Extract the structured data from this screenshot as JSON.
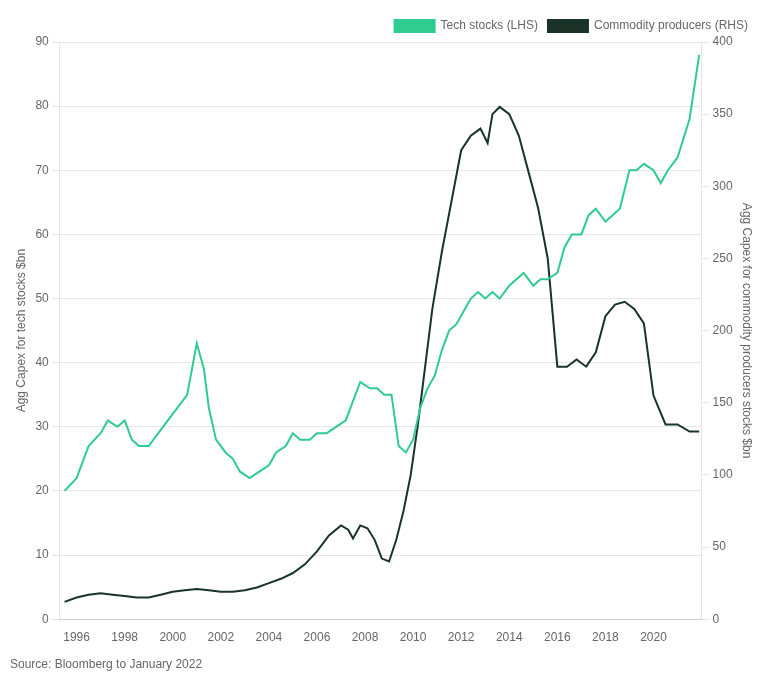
{
  "chart_data": {
    "type": "line",
    "ylabel": "Agg Capex for tech stocks $bn",
    "y2label": "Agg Capex for commodity producers stocks $bn",
    "annotations": [
      "Source: Bloomberg to January 2022"
    ],
    "xlim": [
      1995.3,
      2022.0
    ],
    "xticks": [
      1996,
      1998,
      2000,
      2002,
      2004,
      2006,
      2008,
      2010,
      2012,
      2014,
      2016,
      2018,
      2020
    ],
    "ylim": [
      0,
      90
    ],
    "yticks": [
      0,
      10,
      20,
      30,
      40,
      50,
      60,
      70,
      80,
      90
    ],
    "y2lim": [
      0,
      400
    ],
    "y2ticks": [
      0,
      50,
      100,
      150,
      200,
      250,
      300,
      350,
      400
    ],
    "grid": "y",
    "legend": "upper right",
    "series": [
      {
        "name": "Tech stocks (LHS)",
        "color": "#2ecc8e",
        "axis": "y",
        "x": [
          1995.5,
          1996.0,
          1996.5,
          1997.0,
          1997.3,
          1997.7,
          1998.0,
          1998.3,
          1998.6,
          1999.0,
          1999.4,
          1999.8,
          2000.2,
          2000.6,
          2001.0,
          2001.3,
          2001.5,
          2001.8,
          2002.2,
          2002.5,
          2002.8,
          2003.2,
          2003.6,
          2004.0,
          2004.3,
          2004.7,
          2005.0,
          2005.3,
          2005.7,
          2006.0,
          2006.4,
          2006.8,
          2007.2,
          2007.5,
          2007.8,
          2008.2,
          2008.5,
          2008.8,
          2009.1,
          2009.4,
          2009.7,
          2010.0,
          2010.3,
          2010.6,
          2010.9,
          2011.2,
          2011.5,
          2011.8,
          2012.1,
          2012.4,
          2012.7,
          2013.0,
          2013.3,
          2013.6,
          2014.0,
          2014.3,
          2014.6,
          2015.0,
          2015.3,
          2015.6,
          2016.0,
          2016.3,
          2016.6,
          2017.0,
          2017.3,
          2017.6,
          2018.0,
          2018.3,
          2018.6,
          2019.0,
          2019.3,
          2019.6,
          2020.0,
          2020.3,
          2020.6,
          2021.0,
          2021.5,
          2021.9
        ],
        "values": [
          20,
          22,
          27,
          29,
          31,
          30,
          31,
          28,
          27,
          27,
          29,
          31,
          33,
          35,
          43,
          39,
          33,
          28,
          26,
          25,
          23,
          22,
          23,
          24,
          26,
          27,
          29,
          28,
          28,
          29,
          29,
          30,
          31,
          34,
          37,
          36,
          36,
          35,
          35,
          27,
          26,
          28,
          33,
          36,
          38,
          42,
          45,
          46,
          48,
          50,
          51,
          50,
          51,
          50,
          52,
          53,
          54,
          52,
          53,
          53,
          54,
          58,
          60,
          60,
          63,
          64,
          62,
          63,
          64,
          70,
          70,
          71,
          70,
          68,
          70,
          72,
          78,
          88
        ]
      },
      {
        "name": "Commodity producers (RHS)",
        "color": "#1a3328",
        "axis": "y2",
        "x": [
          1995.5,
          1996.0,
          1996.5,
          1997.0,
          1997.5,
          1998.0,
          1998.5,
          1999.0,
          1999.5,
          2000.0,
          2000.5,
          2001.0,
          2001.5,
          2002.0,
          2002.5,
          2003.0,
          2003.5,
          2004.0,
          2004.5,
          2005.0,
          2005.5,
          2006.0,
          2006.5,
          2007.0,
          2007.3,
          2007.5,
          2007.8,
          2008.1,
          2008.4,
          2008.7,
          2009.0,
          2009.3,
          2009.6,
          2009.9,
          2010.2,
          2010.5,
          2010.8,
          2011.2,
          2011.6,
          2012.0,
          2012.4,
          2012.8,
          2013.1,
          2013.3,
          2013.6,
          2014.0,
          2014.4,
          2014.8,
          2015.2,
          2015.6,
          2016.0,
          2016.4,
          2016.8,
          2017.2,
          2017.6,
          2018.0,
          2018.4,
          2018.8,
          2019.2,
          2019.6,
          2020.0,
          2020.5,
          2021.0,
          2021.5,
          2021.9
        ],
        "values": [
          12,
          15,
          17,
          18,
          17,
          16,
          15,
          15,
          17,
          19,
          20,
          21,
          20,
          19,
          19,
          20,
          22,
          25,
          28,
          32,
          38,
          47,
          58,
          65,
          62,
          56,
          65,
          63,
          55,
          42,
          40,
          55,
          75,
          100,
          135,
          175,
          215,
          255,
          290,
          325,
          335,
          340,
          330,
          350,
          355,
          350,
          335,
          310,
          285,
          250,
          175,
          175,
          180,
          175,
          185,
          210,
          218,
          220,
          215,
          205,
          155,
          135,
          135,
          130,
          130
        ]
      }
    ]
  }
}
